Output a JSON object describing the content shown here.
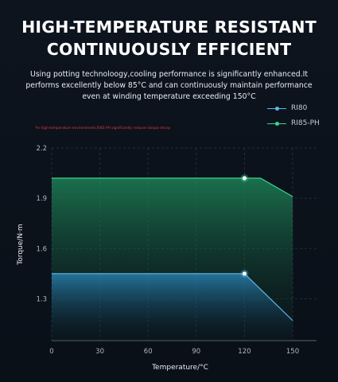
{
  "header": {
    "title_line_1": "HIGH-TEMPERATURE RESISTANT",
    "title_line_2": "CONTINUOUSLY EFFICIENT",
    "subtitle": "Using potting technoloogy,cooling performance is significantly enhanced.It performs excellently below 85°C and can continuously maintain performance even at winding temperature exceeding 150°C"
  },
  "note": "*In high-temperature environments,RI85-PH significantly reduces torque decay",
  "colors": {
    "RI80": "#5fb8e6",
    "RI85-PH": "#35d78f",
    "background": "#0b1119",
    "note": "#d9393b"
  },
  "chart_data": {
    "type": "area",
    "title": "",
    "xlabel": "Temperature/°C",
    "ylabel": "Torque/N·m",
    "xlim": [
      0,
      150
    ],
    "ylim": [
      1.05,
      2.2
    ],
    "x_ticks": [
      0,
      30,
      60,
      90,
      120,
      150
    ],
    "y_ticks": [
      1.3,
      1.6,
      1.9,
      2.2
    ],
    "grid": true,
    "legend_position": "top-right",
    "series": [
      {
        "name": "RI80",
        "x": [
          0,
          120,
          150
        ],
        "y": [
          1.45,
          1.45,
          1.17
        ],
        "marker_at_x": 120
      },
      {
        "name": "RI85-PH",
        "x": [
          0,
          120,
          130,
          150
        ],
        "y": [
          2.02,
          2.02,
          2.02,
          1.91
        ],
        "marker_at_x": 120
      }
    ]
  }
}
